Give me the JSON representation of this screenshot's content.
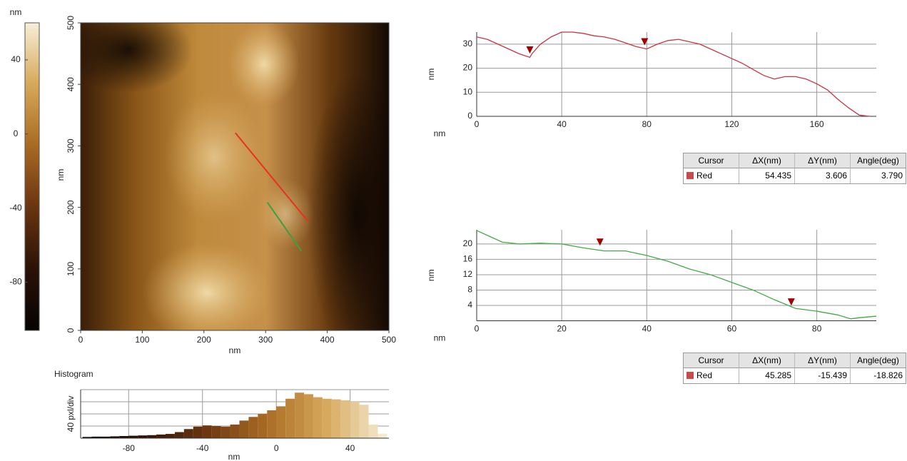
{
  "chart_data": [
    {
      "type": "colorbar",
      "unit": "nm",
      "ylim": [
        -106,
        60
      ],
      "yticks": [
        40,
        0,
        -40,
        -80
      ],
      "colormap": [
        "#050302",
        "#2a1206",
        "#6a3410",
        "#a86a22",
        "#d6a85a",
        "#f7efd8"
      ]
    },
    {
      "type": "image",
      "xlabel": "nm",
      "ylabel": "nm",
      "xlim": [
        0,
        500
      ],
      "ylim": [
        0,
        500
      ],
      "xticks": [
        0,
        100,
        200,
        300,
        400,
        500
      ],
      "yticks": [
        0,
        100,
        200,
        300,
        400,
        500
      ],
      "cursors": [
        {
          "color": "#e8321e",
          "x": [
            251,
            369
          ],
          "y": [
            321,
            177
          ]
        },
        {
          "color": "#3aa040",
          "x": [
            303,
            358
          ],
          "y": [
            208,
            129
          ]
        }
      ]
    },
    {
      "type": "histogram",
      "title": "Histogram",
      "xlabel": "nm",
      "ylabel": "40 pxl/div",
      "xlim": [
        -106,
        61
      ],
      "xticks": [
        -80,
        -40,
        0,
        40
      ],
      "ylim": [
        0,
        160
      ],
      "ygrid": [
        40,
        80,
        120
      ],
      "bins": [
        -105,
        -100,
        -95,
        -90,
        -85,
        -80,
        -75,
        -70,
        -65,
        -60,
        -55,
        -50,
        -45,
        -40,
        -35,
        -30,
        -25,
        -20,
        -15,
        -10,
        -5,
        0,
        5,
        10,
        15,
        20,
        25,
        30,
        35,
        40,
        45,
        50,
        55,
        60
      ],
      "values": [
        4,
        5,
        5,
        6,
        7,
        8,
        9,
        10,
        12,
        14,
        20,
        30,
        38,
        42,
        40,
        38,
        45,
        58,
        70,
        80,
        92,
        105,
        130,
        150,
        145,
        135,
        130,
        128,
        125,
        120,
        110,
        45,
        15
      ]
    },
    {
      "type": "line",
      "xlabel": "nm",
      "ylabel": "nm",
      "xlim": [
        0,
        188
      ],
      "ylim": [
        0,
        35
      ],
      "xticks": [
        0,
        40,
        80,
        120,
        160
      ],
      "yticks": [
        0,
        10,
        20,
        30
      ],
      "color": "#cc3344",
      "marker_color": "#a00000",
      "x": [
        0,
        5,
        10,
        15,
        20,
        25,
        26,
        30,
        35,
        40,
        45,
        50,
        55,
        60,
        65,
        70,
        75,
        80,
        85,
        90,
        95,
        100,
        105,
        110,
        115,
        120,
        125,
        130,
        135,
        140,
        145,
        150,
        155,
        160,
        165,
        170,
        175,
        180,
        185
      ],
      "values": [
        33,
        32,
        30,
        28,
        26,
        24.5,
        26,
        30,
        33,
        35,
        35,
        34.5,
        33.5,
        33,
        32,
        30.5,
        29,
        28,
        30,
        31.5,
        32,
        31,
        30,
        28,
        26,
        24,
        22,
        19.5,
        17,
        15.5,
        16.5,
        16.5,
        15.5,
        13.5,
        11,
        7,
        3.5,
        0.5,
        0
      ],
      "markers": [
        {
          "x": 25,
          "y": 27.6
        },
        {
          "x": 79,
          "y": 31
        }
      ]
    },
    {
      "type": "line",
      "xlabel": "nm",
      "ylabel": "nm",
      "xlim": [
        0,
        94
      ],
      "ylim": [
        0,
        23.7
      ],
      "xticks": [
        0,
        20,
        40,
        60,
        80
      ],
      "yticks": [
        4,
        8,
        12,
        16,
        20
      ],
      "color": "#44aa44",
      "marker_color": "#a00000",
      "x": [
        0,
        3,
        6,
        10,
        15,
        20,
        25,
        30,
        35,
        40,
        45,
        50,
        55,
        60,
        65,
        70,
        75,
        80,
        85,
        88,
        90,
        94
      ],
      "values": [
        23.5,
        22,
        20.5,
        20,
        20.2,
        20,
        19,
        18.2,
        18.2,
        17,
        15.5,
        13.5,
        12,
        10,
        8,
        5.5,
        3.2,
        2.5,
        1.5,
        0.5,
        0.8,
        1.2
      ],
      "markers": [
        {
          "x": 29,
          "y": 20.5
        },
        {
          "x": 74,
          "y": 4.9
        }
      ]
    }
  ],
  "tables": [
    {
      "columns": [
        "Cursor",
        "ΔX(nm)",
        "ΔY(nm)",
        "Angle(deg)"
      ],
      "rows": [
        [
          "Red",
          "54.435",
          "3.606",
          "3.790"
        ]
      ]
    },
    {
      "columns": [
        "Cursor",
        "ΔX(nm)",
        "ΔY(nm)",
        "Angle(deg)"
      ],
      "rows": [
        [
          "Red",
          "45.285",
          "-15.439",
          "-18.826"
        ]
      ]
    }
  ]
}
